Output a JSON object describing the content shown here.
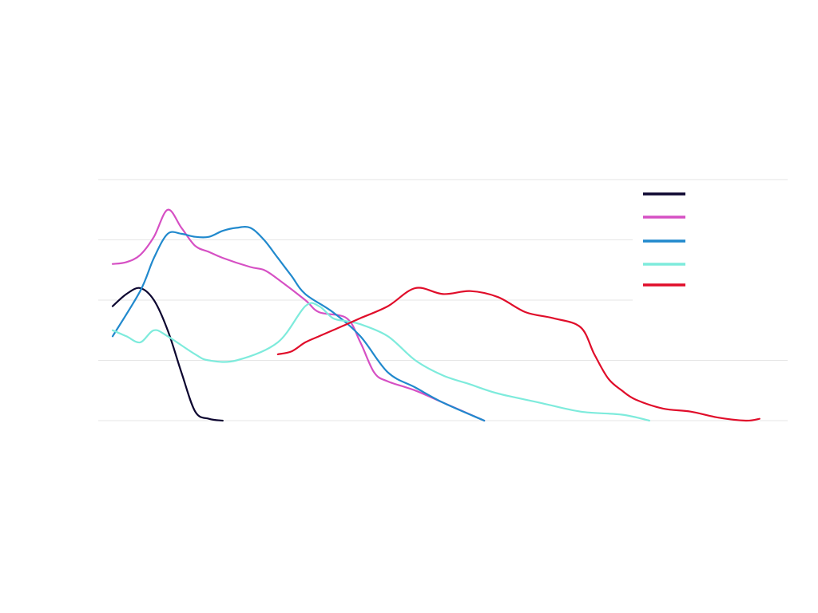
{
  "chart_data": {
    "type": "line",
    "title": "",
    "xlabel": "",
    "ylabel": "",
    "xlim": [
      0,
      48
    ],
    "ylim": [
      0,
      40
    ],
    "yticks": [
      0,
      10,
      20,
      30,
      40
    ],
    "grid": true,
    "legend_position": "top-right",
    "legend_labels_visible": false,
    "colors": {
      "background": "#ffffff",
      "grid": "#e6e6e6"
    },
    "series": [
      {
        "color": "#0d0630",
        "points": [
          [
            0,
            19
          ],
          [
            1,
            21
          ],
          [
            2,
            22
          ],
          [
            3,
            20
          ],
          [
            4,
            15
          ],
          [
            5,
            8
          ],
          [
            6,
            1.5
          ],
          [
            7,
            0.3
          ],
          [
            8,
            0
          ]
        ]
      },
      {
        "color": "#d650c4",
        "points": [
          [
            0,
            26
          ],
          [
            1,
            26.3
          ],
          [
            2,
            27.5
          ],
          [
            3,
            30.5
          ],
          [
            4,
            35
          ],
          [
            5,
            32
          ],
          [
            6,
            29
          ],
          [
            7,
            28
          ],
          [
            8,
            27
          ],
          [
            10,
            25.5
          ],
          [
            11,
            25
          ],
          [
            12,
            23.5
          ],
          [
            14,
            20
          ],
          [
            15,
            18
          ],
          [
            17,
            17
          ],
          [
            18,
            13
          ],
          [
            19,
            8
          ],
          [
            20,
            6.5
          ],
          [
            22,
            5
          ],
          [
            24,
            3
          ],
          [
            27,
            0
          ]
        ]
      },
      {
        "color": "#2189cd",
        "points": [
          [
            0,
            14
          ],
          [
            2,
            21.5
          ],
          [
            3,
            27
          ],
          [
            4,
            31
          ],
          [
            5,
            31
          ],
          [
            6,
            30.5
          ],
          [
            7,
            30.5
          ],
          [
            8,
            31.5
          ],
          [
            9,
            32
          ],
          [
            10,
            32
          ],
          [
            11,
            30
          ],
          [
            12,
            27
          ],
          [
            13,
            24
          ],
          [
            14,
            21
          ],
          [
            16,
            18
          ],
          [
            18,
            14
          ],
          [
            20,
            8
          ],
          [
            22,
            5.5
          ],
          [
            24,
            3
          ],
          [
            27,
            0
          ]
        ]
      },
      {
        "color": "#7eebdc",
        "points": [
          [
            0,
            15
          ],
          [
            1,
            14
          ],
          [
            2,
            13
          ],
          [
            3,
            15
          ],
          [
            4,
            14
          ],
          [
            6,
            11
          ],
          [
            7,
            10
          ],
          [
            9,
            10
          ],
          [
            12,
            13
          ],
          [
            14,
            19
          ],
          [
            15,
            19
          ],
          [
            16,
            17
          ],
          [
            17,
            16.5
          ],
          [
            18,
            16
          ],
          [
            20,
            14
          ],
          [
            22,
            10
          ],
          [
            24,
            7.5
          ],
          [
            26,
            6
          ],
          [
            28,
            4.5
          ],
          [
            31,
            3
          ],
          [
            34,
            1.5
          ],
          [
            37,
            1
          ],
          [
            39,
            0
          ]
        ]
      },
      {
        "color": "#e00d2a",
        "points": [
          [
            12,
            11
          ],
          [
            13,
            11.5
          ],
          [
            14,
            13
          ],
          [
            15,
            14
          ],
          [
            16,
            15
          ],
          [
            17,
            16
          ],
          [
            18,
            17
          ],
          [
            20,
            19
          ],
          [
            22,
            22
          ],
          [
            24,
            21
          ],
          [
            26,
            21.5
          ],
          [
            28,
            20.5
          ],
          [
            30,
            18
          ],
          [
            32,
            17
          ],
          [
            34,
            15.5
          ],
          [
            35,
            11
          ],
          [
            36,
            7
          ],
          [
            37,
            5
          ],
          [
            38,
            3.5
          ],
          [
            40,
            2
          ],
          [
            42,
            1.5
          ],
          [
            44,
            0.5
          ],
          [
            46,
            0
          ],
          [
            47,
            0.3
          ]
        ]
      }
    ]
  }
}
